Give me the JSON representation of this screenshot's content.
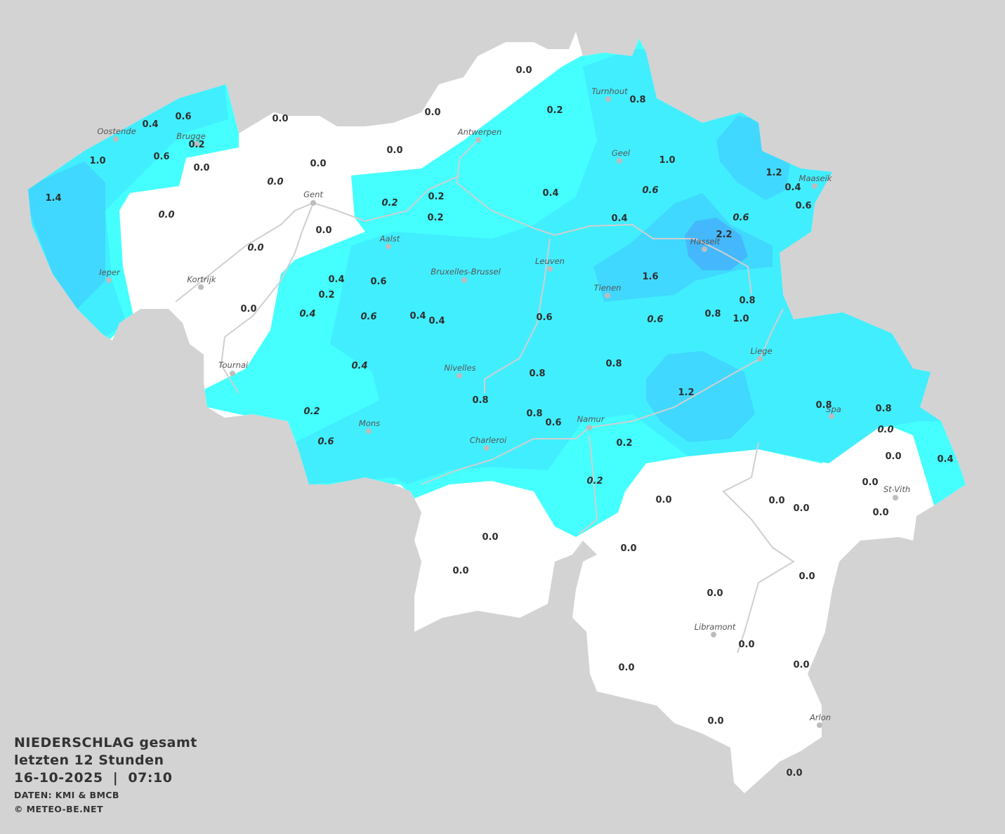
{
  "legend": {
    "title": "NIEDERSCHLAG gesamt",
    "period": "letzten 12 Stunden",
    "datetime": "16-10-2025  |  07:10",
    "source": "DATEN: KMI & BMCB",
    "copyright": "© METEO-BE.NET"
  },
  "colors": {
    "background": "#d3d3d3",
    "land_no_rain": "#ffffff",
    "rain_0_2": "#44fffe",
    "rain_0_4": "#41eefe",
    "rain_1_0": "#40d8fe",
    "rain_2_0": "#45b8fd"
  },
  "cities": [
    "Turnhout",
    "Oostende",
    "Brugge",
    "Antwerpen",
    "Geel",
    "Maaseik",
    "Gent",
    "Hasselt",
    "Aalst",
    "Leuven",
    "Ieper",
    "Bruxelles-Brussel",
    "Kortrijk",
    "Tienen",
    "Liege",
    "Tournai",
    "Nivelles",
    "Spa",
    "Namur",
    "Mons",
    "Charleroi",
    "St-Vith",
    "Libramont",
    "Arlon"
  ],
  "values": [
    "0.0",
    "0.2",
    "0.8",
    "0.0",
    "0.0",
    "0.6",
    "0.4",
    "0.2",
    "0.0",
    "0.6",
    "1.0",
    "0.0",
    "0.0",
    "0.0",
    "1.0",
    "1.2",
    "0.4",
    "0.6",
    "0.4",
    "0.6",
    "1.4",
    "0.2",
    "0.2",
    "0.2",
    "0.0",
    "0.4",
    "0.6",
    "0.0",
    "2.2",
    "0.0",
    "1.6",
    "0.4",
    "0.6",
    "0.2",
    "0.8",
    "0.0",
    "0.4",
    "0.6",
    "0.4",
    "0.4",
    "0.6",
    "0.6",
    "0.8",
    "1.0",
    "0.8",
    "0.4",
    "0.8",
    "1.2",
    "0.8",
    "0.8",
    "0.8",
    "0.2",
    "0.8",
    "0.6",
    "0.0",
    "0.6",
    "0.2",
    "0.0",
    "0.4",
    "0.2",
    "0.0",
    "0.0",
    "0.0",
    "0.0",
    "0.0",
    "0.0",
    "0.0",
    "0.0",
    "0.0",
    "0.0",
    "0.0",
    "0.0",
    "0.0",
    "0.0",
    "0.0"
  ]
}
